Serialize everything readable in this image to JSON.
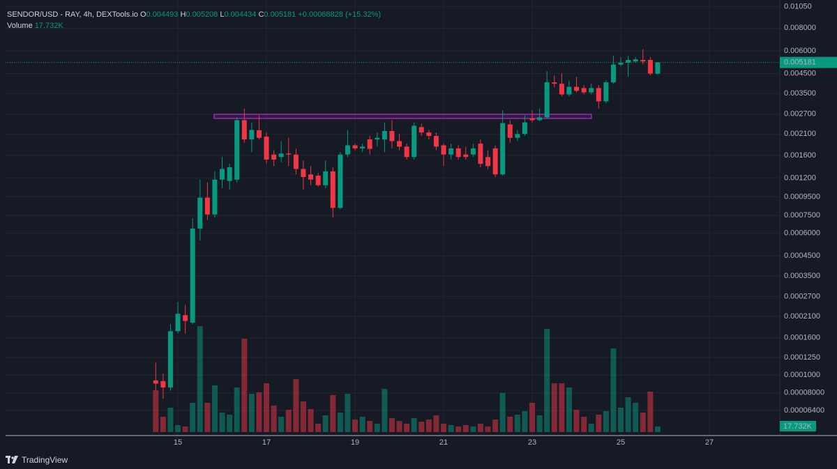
{
  "chart_data": {
    "type": "candlestick",
    "header": {
      "symbol": "SENDOR/USD - RAY, 4h, DEXTools.io",
      "ohlc_letters": [
        "O",
        "H",
        "L",
        "C"
      ],
      "change": "+0.00068828 (+15.32%)",
      "volume_title": "Volume"
    },
    "x": [
      14.5,
      14.667,
      14.833,
      15,
      15.167,
      15.333,
      15.5,
      15.667,
      15.833,
      16,
      16.167,
      16.333,
      16.5,
      16.667,
      16.833,
      17,
      17.167,
      17.333,
      17.5,
      17.667,
      17.833,
      18,
      18.167,
      18.333,
      18.5,
      18.667,
      18.833,
      19,
      19.167,
      19.333,
      19.5,
      19.667,
      19.833,
      20,
      20.167,
      20.333,
      20.5,
      20.667,
      20.833,
      21,
      21.167,
      21.333,
      21.5,
      21.667,
      21.833,
      22,
      22.167,
      22.333,
      22.5,
      22.667,
      22.833,
      23,
      23.167,
      23.333,
      23.5,
      23.667,
      23.833,
      24,
      24.167,
      24.333,
      24.5,
      24.667,
      24.833,
      25,
      25.167,
      25.333,
      25.5,
      25.667,
      25.833
    ],
    "open": [
      9.35e-05,
      9.27e-05,
      8.55e-05,
      0.000174,
      0.000213,
      0.000194,
      0.000636,
      0.00094,
      0.00076,
      0.00118,
      0.00116,
      0.00118,
      0.0025,
      0.00196,
      0.0022,
      0.00203,
      0.00162,
      0.00157,
      0.00164,
      0.00162,
      0.00135,
      0.00126,
      0.00124,
      0.0011,
      0.00131,
      0.000826,
      0.00162,
      0.00182,
      0.00175,
      0.00196,
      0.00196,
      0.00196,
      0.00218,
      0.00192,
      0.00179,
      0.00157,
      0.00229,
      0.00214,
      0.00205,
      0.00182,
      0.00162,
      0.00175,
      0.00162,
      0.00162,
      0.00186,
      0.00157,
      0.00175,
      0.00126,
      0.00237,
      0.002,
      0.0021,
      0.00255,
      0.0025,
      0.00259,
      0.00403,
      0.00396,
      0.00346,
      0.00381,
      0.00375,
      0.00355,
      0.00375,
      0.00317,
      0.00403,
      0.00504,
      0.00516,
      0.00525,
      0.00535,
      0.00535,
      0.004493
    ],
    "high": [
      0.000117,
      0.000102,
      0.00019,
      0.000253,
      0.000242,
      0.000725,
      0.00118,
      0.00114,
      0.00131,
      0.00157,
      0.00144,
      0.00259,
      0.0029,
      0.00243,
      0.00266,
      0.00214,
      0.00171,
      0.00192,
      0.002,
      0.00175,
      0.0015,
      0.0014,
      0.00128,
      0.0015,
      0.00138,
      0.00167,
      0.00221,
      0.00186,
      0.00186,
      0.00205,
      0.00214,
      0.00243,
      0.0025,
      0.0021,
      0.00186,
      0.00243,
      0.00238,
      0.00221,
      0.00214,
      0.00186,
      0.00186,
      0.00182,
      0.00179,
      0.00186,
      0.00196,
      0.00171,
      0.00182,
      0.00283,
      0.0025,
      0.00221,
      0.00266,
      0.00283,
      0.0029,
      0.00463,
      0.0044,
      0.00452,
      0.00413,
      0.00432,
      0.00389,
      0.00396,
      0.00389,
      0.00413,
      0.00563,
      0.00554,
      0.00563,
      0.00554,
      0.00612,
      0.00554,
      0.005208
    ],
    "low": [
      8.22e-05,
      7.4e-05,
      8.22e-05,
      0.000169,
      0.000169,
      0.00019,
      0.000548,
      0.00071,
      0.00073,
      0.00106,
      0.00104,
      0.00114,
      0.00188,
      0.00167,
      0.00196,
      0.00144,
      0.0014,
      0.00147,
      0.0014,
      0.00126,
      0.00104,
      0.0011,
      0.00108,
      0.00106,
      0.00073,
      0.000813,
      0.00157,
      0.00171,
      0.00167,
      0.00162,
      0.00179,
      0.00167,
      0.00175,
      0.00171,
      0.00152,
      0.00152,
      0.00205,
      0.00196,
      0.00171,
      0.0014,
      0.00152,
      0.00152,
      0.00152,
      0.00157,
      0.00138,
      0.00135,
      0.00122,
      0.00124,
      0.00188,
      0.00192,
      0.00205,
      0.00243,
      0.00247,
      0.00255,
      0.00378,
      0.00338,
      0.00338,
      0.00355,
      0.00346,
      0.00346,
      0.0029,
      0.00309,
      0.00396,
      0.00493,
      0.00432,
      0.00516,
      0.00504,
      0.0044,
      0.004434
    ],
    "close": [
      8.98e-05,
      8.55e-05,
      0.000174,
      0.000217,
      0.000198,
      0.000636,
      0.00094,
      0.00076,
      0.00118,
      0.00135,
      0.00138,
      0.0025,
      0.00196,
      0.00221,
      0.002,
      0.00152,
      0.00152,
      0.00164,
      0.00162,
      0.00135,
      0.00122,
      0.00118,
      0.0011,
      0.00131,
      0.000826,
      0.00162,
      0.00182,
      0.00175,
      0.00179,
      0.00174,
      0.002,
      0.00218,
      0.00192,
      0.00179,
      0.00157,
      0.00233,
      0.00214,
      0.00205,
      0.00179,
      0.00162,
      0.00175,
      0.00157,
      0.00157,
      0.00175,
      0.00144,
      0.0014,
      0.00126,
      0.00241,
      0.002,
      0.0021,
      0.00243,
      0.0025,
      0.00259,
      0.00403,
      0.00396,
      0.00346,
      0.00381,
      0.00362,
      0.00355,
      0.00375,
      0.00317,
      0.00403,
      0.00504,
      0.00516,
      0.00535,
      0.00539,
      0.00525,
      0.0045,
      0.005181
    ],
    "volume": [
      132000,
      48400,
      77000,
      22000,
      17600,
      92400,
      334400,
      92400,
      147400,
      61600,
      55000,
      140800,
      294800,
      121000,
      125400,
      154000,
      83600,
      48400,
      70400,
      167200,
      96800,
      72600,
      26400,
      52800,
      116600,
      61600,
      121000,
      39600,
      48400,
      35200,
      26400,
      136400,
      44000,
      35200,
      26400,
      44000,
      33000,
      39600,
      52800,
      26400,
      22000,
      17600,
      22000,
      17600,
      26400,
      17600,
      39600,
      123200,
      48400,
      55000,
      66000,
      92400,
      52800,
      325600,
      154000,
      154000,
      140800,
      70400,
      48400,
      26400,
      55000,
      66000,
      264000,
      77000,
      110000,
      92400,
      61600,
      127600,
      17732
    ],
    "volume_value_labels": [
      null,
      null,
      null,
      null,
      null,
      null,
      null,
      null,
      null,
      null,
      null,
      null,
      null,
      null,
      null,
      null,
      null,
      null,
      null,
      null,
      null,
      null,
      null,
      null,
      null,
      null,
      null,
      null,
      null,
      null,
      null,
      null,
      null,
      null,
      null,
      null,
      null,
      null,
      null,
      null,
      null,
      null,
      null,
      null,
      null,
      null,
      null,
      null,
      null,
      null,
      null,
      null,
      null,
      null,
      null,
      null,
      null,
      null,
      null,
      null,
      null,
      null,
      null,
      null,
      null,
      null,
      null,
      null,
      "17.732K"
    ],
    "volume_lim": [
      0,
      341000
    ],
    "log_scale": true,
    "ylim": [
      4.66e-05,
      0.0114
    ],
    "yticks": [
      {
        "value": 0.0105,
        "label": "0.01050"
      },
      {
        "value": 0.008,
        "label": "0.008000"
      },
      {
        "value": 0.006,
        "label": "0.006000"
      },
      {
        "value": 0.0045,
        "label": "0.004500"
      },
      {
        "value": 0.0035,
        "label": "0.003500"
      },
      {
        "value": 0.0027,
        "label": "0.002700"
      },
      {
        "value": 0.0021,
        "label": "0.002100"
      },
      {
        "value": 0.0016,
        "label": "0.001600"
      },
      {
        "value": 0.0012,
        "label": "0.001200"
      },
      {
        "value": 0.00095,
        "label": "0.0009500"
      },
      {
        "value": 0.00075,
        "label": "0.0007500"
      },
      {
        "value": 0.0006,
        "label": "0.0006000"
      },
      {
        "value": 0.00045,
        "label": "0.0004500"
      },
      {
        "value": 0.00035,
        "label": "0.0003500"
      },
      {
        "value": 0.00027,
        "label": "0.0002700"
      },
      {
        "value": 0.00021,
        "label": "0.0002100"
      },
      {
        "value": 0.00016,
        "label": "0.0001600"
      },
      {
        "value": 0.000125,
        "label": "0.0001250"
      },
      {
        "value": 0.0001,
        "label": "0.0001000"
      },
      {
        "value": 8e-05,
        "label": "0.00008000"
      },
      {
        "value": 6.4e-05,
        "label": "0.00006400"
      }
    ],
    "xlim": [
      11.11,
      28.59
    ],
    "xticks": [
      15,
      17,
      19,
      21,
      23,
      25,
      27
    ],
    "grid": true,
    "up_color": "#089981",
    "down_color": "#f23645"
  },
  "footer": {
    "brand": "TradingView"
  }
}
